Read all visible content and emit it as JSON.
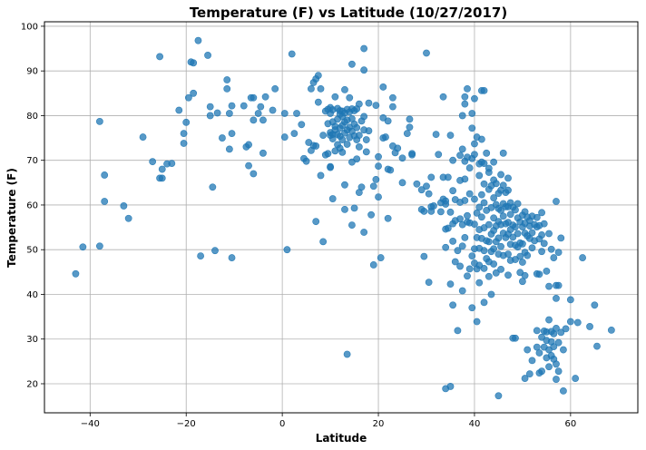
{
  "chart_data": {
    "type": "scatter",
    "title": "Temperature (F) vs Latitude (10/27/2017)",
    "xlabel": "Latitude",
    "ylabel": "Temperature (F)",
    "xlim": [
      -49.5,
      74
    ],
    "ylim": [
      13.5,
      101
    ],
    "xticks": [
      "−40",
      "−20",
      "0",
      "20",
      "40",
      "60"
    ],
    "yticks": [
      "20",
      "30",
      "40",
      "50",
      "60",
      "70",
      "80",
      "90",
      "100"
    ],
    "grid": true,
    "marker_color": "#1f77b4",
    "points": [
      [
        -43,
        44.6
      ],
      [
        -41.5,
        50.6
      ],
      [
        -38,
        78.7
      ],
      [
        -38,
        50.8
      ],
      [
        -37,
        66.7
      ],
      [
        -37,
        60.8
      ],
      [
        -33,
        59.8
      ],
      [
        -32,
        57
      ],
      [
        -29,
        75.2
      ],
      [
        -27,
        69.7
      ],
      [
        -25.5,
        93.2
      ],
      [
        -25.5,
        66
      ],
      [
        -25,
        66
      ],
      [
        -25,
        68
      ],
      [
        -24,
        69.2
      ],
      [
        -23,
        69.3
      ],
      [
        -21.5,
        81.2
      ],
      [
        -20.5,
        73.8
      ],
      [
        -20.5,
        76
      ],
      [
        -20,
        78.5
      ],
      [
        -19.5,
        84
      ],
      [
        -19,
        92
      ],
      [
        -18.5,
        91.8
      ],
      [
        -18.5,
        85
      ],
      [
        -17.5,
        96.8
      ],
      [
        -17,
        48.6
      ],
      [
        -15.5,
        93.5
      ],
      [
        -15,
        82
      ],
      [
        -15,
        80
      ],
      [
        -14.5,
        64
      ],
      [
        -14,
        49.8
      ],
      [
        -13.5,
        80.6
      ],
      [
        -12.5,
        75
      ],
      [
        -11.5,
        88
      ],
      [
        -11.5,
        86
      ],
      [
        -11,
        80.5
      ],
      [
        -11,
        72.5
      ],
      [
        -10.5,
        82.2
      ],
      [
        -10.5,
        76
      ],
      [
        -10.5,
        48.2
      ],
      [
        -8,
        82.2
      ],
      [
        -7.5,
        73
      ],
      [
        -7,
        73.5
      ],
      [
        -7,
        68.8
      ],
      [
        -6.5,
        84
      ],
      [
        -6,
        84
      ],
      [
        -6,
        79
      ],
      [
        -6,
        67
      ],
      [
        -5,
        80.5
      ],
      [
        -4.5,
        82
      ],
      [
        -4,
        79
      ],
      [
        -4,
        71.6
      ],
      [
        -3.5,
        84.2
      ],
      [
        -2,
        81.2
      ],
      [
        -1.5,
        86
      ],
      [
        0.5,
        80.5
      ],
      [
        0.5,
        75.2
      ],
      [
        1,
        50
      ],
      [
        2,
        93.8
      ],
      [
        2.5,
        76
      ],
      [
        3,
        80.5
      ],
      [
        4,
        78
      ],
      [
        4.5,
        70.4
      ],
      [
        5,
        69.8
      ],
      [
        5.5,
        74
      ],
      [
        6,
        86
      ],
      [
        6,
        72.2
      ],
      [
        6.5,
        87.4
      ],
      [
        6.5,
        73.3
      ],
      [
        7,
        88.2
      ],
      [
        7,
        73.2
      ],
      [
        7,
        56.3
      ],
      [
        7.5,
        89
      ],
      [
        7.5,
        83
      ],
      [
        8,
        86
      ],
      [
        8,
        66.6
      ],
      [
        8.5,
        75.6
      ],
      [
        8.5,
        51.8
      ],
      [
        9,
        81
      ],
      [
        9,
        71.2
      ],
      [
        9.5,
        81.4
      ],
      [
        9.5,
        78.2
      ],
      [
        9.5,
        71.5
      ],
      [
        10,
        81.8
      ],
      [
        10,
        80.5
      ],
      [
        10,
        76.2
      ],
      [
        10,
        75.6
      ],
      [
        10,
        68.6
      ],
      [
        10,
        68.4
      ],
      [
        10.5,
        81.3
      ],
      [
        10.5,
        78.6
      ],
      [
        10.5,
        75.8
      ],
      [
        10.5,
        74.8
      ],
      [
        10.5,
        61.4
      ],
      [
        11,
        84.2
      ],
      [
        11,
        77.6
      ],
      [
        11,
        76.8
      ],
      [
        11,
        72.1
      ],
      [
        11.5,
        81.6
      ],
      [
        11.5,
        79.2
      ],
      [
        11.5,
        75.8
      ],
      [
        11.5,
        73.5
      ],
      [
        12,
        81.1
      ],
      [
        12,
        80.3
      ],
      [
        12,
        77.2
      ],
      [
        12,
        75.4
      ],
      [
        12,
        72.7
      ],
      [
        12.5,
        81
      ],
      [
        12.5,
        79.8
      ],
      [
        12.5,
        77.8
      ],
      [
        12.5,
        74.6
      ],
      [
        12.5,
        71.8
      ],
      [
        13,
        85.8
      ],
      [
        13,
        80.6
      ],
      [
        13,
        78.6
      ],
      [
        13,
        76.1
      ],
      [
        13,
        64.5
      ],
      [
        13,
        59
      ],
      [
        13.5,
        81.4
      ],
      [
        13.5,
        79
      ],
      [
        13.5,
        76.8
      ],
      [
        13.5,
        73.6
      ],
      [
        13.5,
        26.6
      ],
      [
        14,
        84
      ],
      [
        14,
        80.8
      ],
      [
        14,
        77.4
      ],
      [
        14,
        75.1
      ],
      [
        14.5,
        81.5
      ],
      [
        14.5,
        79.3
      ],
      [
        14.5,
        76.5
      ],
      [
        14.5,
        91.5
      ],
      [
        14.5,
        69.6
      ],
      [
        14.5,
        55.5
      ],
      [
        15,
        81.1
      ],
      [
        15,
        78.1
      ],
      [
        15,
        75.5
      ],
      [
        15,
        59.3
      ],
      [
        15.5,
        81.5
      ],
      [
        15.5,
        77.3
      ],
      [
        15.5,
        74.6
      ],
      [
        15.5,
        70.3
      ],
      [
        16,
        82.6
      ],
      [
        16,
        75.6
      ],
      [
        16,
        73
      ],
      [
        16,
        62.8
      ],
      [
        16.5,
        78.8
      ],
      [
        16.5,
        64
      ],
      [
        17,
        95
      ],
      [
        17,
        90.2
      ],
      [
        17,
        79.8
      ],
      [
        17,
        76.8
      ],
      [
        17,
        53.9
      ],
      [
        17.5,
        74.6
      ],
      [
        17.5,
        71.9
      ],
      [
        18,
        82.8
      ],
      [
        18,
        76.6
      ],
      [
        18.5,
        57.8
      ],
      [
        19,
        64.2
      ],
      [
        19,
        46.6
      ],
      [
        19.5,
        82.3
      ],
      [
        19.5,
        65.7
      ],
      [
        20,
        70.8
      ],
      [
        20,
        68.7
      ],
      [
        20,
        61.8
      ],
      [
        20.5,
        48.2
      ],
      [
        21,
        86.4
      ],
      [
        21,
        79.5
      ],
      [
        21,
        75
      ],
      [
        21.5,
        75.2
      ],
      [
        22,
        78.8
      ],
      [
        22,
        68
      ],
      [
        22,
        57
      ],
      [
        22.5,
        67.8
      ],
      [
        23,
        84
      ],
      [
        23,
        82
      ],
      [
        23,
        73.2
      ],
      [
        23.5,
        71.7
      ],
      [
        24,
        72.7
      ],
      [
        25,
        70.5
      ],
      [
        25,
        65
      ],
      [
        26,
        76
      ],
      [
        26.5,
        79.2
      ],
      [
        26.5,
        77.4
      ],
      [
        27,
        71.5
      ],
      [
        27,
        71.2
      ],
      [
        28,
        64.7
      ],
      [
        29,
        63.4
      ],
      [
        29,
        59
      ],
      [
        29.5,
        58.6
      ],
      [
        29.5,
        48.5
      ],
      [
        30,
        94
      ],
      [
        30,
        64.2
      ],
      [
        30.5,
        62.5
      ],
      [
        30.5,
        42.7
      ],
      [
        31,
        66.2
      ],
      [
        31,
        58.6
      ],
      [
        31,
        59.6
      ],
      [
        31.5,
        59.8
      ],
      [
        32,
        75.8
      ],
      [
        32.5,
        71.3
      ],
      [
        33,
        60.5
      ],
      [
        33,
        58.5
      ],
      [
        33.5,
        84.2
      ],
      [
        33.5,
        66.2
      ],
      [
        33.5,
        61.3
      ],
      [
        34,
        60.9
      ],
      [
        34,
        60.2
      ],
      [
        34,
        54.6
      ],
      [
        34,
        50.5
      ],
      [
        34,
        18.9
      ],
      [
        34.5,
        66.2
      ],
      [
        34.5,
        54.8
      ],
      [
        35,
        75.6
      ],
      [
        35,
        58.4
      ],
      [
        35,
        42.3
      ],
      [
        35,
        19.4
      ],
      [
        35.5,
        70
      ],
      [
        35.5,
        63.2
      ],
      [
        35.5,
        55.8
      ],
      [
        35.5,
        51.9
      ],
      [
        35.5,
        37.6
      ],
      [
        36,
        61.2
      ],
      [
        36,
        56.5
      ],
      [
        36,
        47.3
      ],
      [
        36.5,
        49.8
      ],
      [
        36.5,
        31.9
      ],
      [
        37,
        71.1
      ],
      [
        37,
        65.5
      ],
      [
        37,
        60.6
      ],
      [
        37,
        56.9
      ],
      [
        37,
        46.3
      ],
      [
        37.5,
        80
      ],
      [
        37.5,
        72.5
      ],
      [
        37.5,
        55.6
      ],
      [
        37.5,
        50.8
      ],
      [
        37.5,
        40.8
      ],
      [
        38,
        84.2
      ],
      [
        38,
        82.6
      ],
      [
        38,
        69.8
      ],
      [
        38,
        65.8
      ],
      [
        38,
        61
      ],
      [
        38,
        52.7
      ],
      [
        38.5,
        86
      ],
      [
        38.5,
        70.7
      ],
      [
        38.5,
        57.6
      ],
      [
        38.5,
        56.2
      ],
      [
        38.5,
        44.1
      ],
      [
        39,
        68.3
      ],
      [
        39,
        62.5
      ],
      [
        39,
        56
      ],
      [
        39,
        45.7
      ],
      [
        39.5,
        80.5
      ],
      [
        39.5,
        77.2
      ],
      [
        39.5,
        70.4
      ],
      [
        39.5,
        48.6
      ],
      [
        39.5,
        37
      ],
      [
        40,
        83.8
      ],
      [
        40,
        73.7
      ],
      [
        40,
        71.3
      ],
      [
        40,
        61.3
      ],
      [
        40,
        55.7
      ],
      [
        40,
        50.2
      ],
      [
        40,
        47
      ],
      [
        40.5,
        75.2
      ],
      [
        40.5,
        58.2
      ],
      [
        40.5,
        52.7
      ],
      [
        40.5,
        45.7
      ],
      [
        40.5,
        33.9
      ],
      [
        41,
        69.2
      ],
      [
        41,
        66.6
      ],
      [
        41,
        59.5
      ],
      [
        41,
        54.5
      ],
      [
        41,
        50.3
      ],
      [
        41,
        46.5
      ],
      [
        41,
        42.6
      ],
      [
        41.5,
        85.6
      ],
      [
        41.5,
        74.7
      ],
      [
        41.5,
        69.6
      ],
      [
        41.5,
        62.3
      ],
      [
        41.5,
        57.3
      ],
      [
        41.5,
        52.5
      ],
      [
        42,
        85.6
      ],
      [
        42,
        69.3
      ],
      [
        42,
        64.7
      ],
      [
        42,
        60.5
      ],
      [
        42,
        54.9
      ],
      [
        42,
        49.8
      ],
      [
        42,
        45.8
      ],
      [
        42,
        38.2
      ],
      [
        42.5,
        71.6
      ],
      [
        42.5,
        58.8
      ],
      [
        42.5,
        52
      ],
      [
        42.5,
        48
      ],
      [
        43,
        68.2
      ],
      [
        43,
        67.3
      ],
      [
        43,
        63.5
      ],
      [
        43,
        55.6
      ],
      [
        43,
        51.8
      ],
      [
        43,
        47.3
      ],
      [
        43,
        44
      ],
      [
        43.5,
        64.3
      ],
      [
        43.5,
        59.4
      ],
      [
        43.5,
        53.5
      ],
      [
        43.5,
        49.6
      ],
      [
        43.5,
        40
      ],
      [
        44,
        69.6
      ],
      [
        44,
        65.6
      ],
      [
        44,
        61.6
      ],
      [
        44,
        57.1
      ],
      [
        44,
        54.3
      ],
      [
        44,
        50.2
      ],
      [
        44,
        46.8
      ],
      [
        44.5,
        64.8
      ],
      [
        44.5,
        60.1
      ],
      [
        44.5,
        55.3
      ],
      [
        44.5,
        51.8
      ],
      [
        44.5,
        44.8
      ],
      [
        45,
        62.6
      ],
      [
        45,
        59.2
      ],
      [
        45,
        56.3
      ],
      [
        45,
        52.6
      ],
      [
        45,
        49
      ],
      [
        45,
        17.3
      ],
      [
        45.5,
        66.8
      ],
      [
        45.5,
        63.3
      ],
      [
        45.5,
        58.8
      ],
      [
        45.5,
        55.6
      ],
      [
        45.5,
        50.7
      ],
      [
        45.5,
        45.6
      ],
      [
        46,
        71.6
      ],
      [
        46,
        64.4
      ],
      [
        46,
        60.3
      ],
      [
        46,
        57.5
      ],
      [
        46,
        53.7
      ],
      [
        46,
        48.7
      ],
      [
        46.5,
        62.8
      ],
      [
        46.5,
        59.6
      ],
      [
        46.5,
        55.8
      ],
      [
        46.5,
        52.7
      ],
      [
        47,
        66
      ],
      [
        47,
        63.3
      ],
      [
        47,
        59.6
      ],
      [
        47,
        56.1
      ],
      [
        47,
        53.5
      ],
      [
        47,
        49
      ],
      [
        47,
        44.3
      ],
      [
        47.5,
        60.5
      ],
      [
        47.5,
        57.9
      ],
      [
        47.5,
        54.5
      ],
      [
        47.5,
        51.2
      ],
      [
        47.5,
        47.6
      ],
      [
        48,
        59.5
      ],
      [
        48,
        55.5
      ],
      [
        48,
        52.8
      ],
      [
        48,
        30.2
      ],
      [
        48.5,
        58.9
      ],
      [
        48.5,
        55.1
      ],
      [
        48.5,
        51
      ],
      [
        48.5,
        47.8
      ],
      [
        48.5,
        30.2
      ],
      [
        49,
        60.3
      ],
      [
        49,
        57.1
      ],
      [
        49,
        53.6
      ],
      [
        49,
        50.6
      ],
      [
        49.5,
        56.2
      ],
      [
        49.5,
        51.5
      ],
      [
        49.5,
        48.5
      ],
      [
        49.5,
        44.9
      ],
      [
        50,
        57.7
      ],
      [
        50,
        55.1
      ],
      [
        50,
        51.3
      ],
      [
        50,
        47.2
      ],
      [
        50,
        42.9
      ],
      [
        50.5,
        58.5
      ],
      [
        50.5,
        55.9
      ],
      [
        50.5,
        53.7
      ],
      [
        50.5,
        49.4
      ],
      [
        50.5,
        44.2
      ],
      [
        50.5,
        21.2
      ],
      [
        51,
        57.3
      ],
      [
        51,
        53.1
      ],
      [
        51,
        48.7
      ],
      [
        51,
        27.6
      ],
      [
        51.5,
        56.5
      ],
      [
        51.5,
        55.3
      ],
      [
        51.5,
        52.5
      ],
      [
        51.5,
        22.2
      ],
      [
        52,
        57.5
      ],
      [
        52,
        53.8
      ],
      [
        52,
        50.4
      ],
      [
        52,
        25.2
      ],
      [
        52.5,
        55.6
      ],
      [
        52.5,
        52
      ],
      [
        53,
        57.2
      ],
      [
        53,
        55.1
      ],
      [
        53,
        44.6
      ],
      [
        53,
        31.9
      ],
      [
        53,
        28.2
      ],
      [
        53.5,
        55.4
      ],
      [
        53.5,
        52.4
      ],
      [
        53.5,
        44.5
      ],
      [
        53.5,
        26.9
      ],
      [
        53.5,
        22.4
      ],
      [
        54,
        58.3
      ],
      [
        54,
        53.3
      ],
      [
        54,
        49.6
      ],
      [
        54,
        30.4
      ],
      [
        54,
        22.8
      ],
      [
        54.5,
        55.8
      ],
      [
        54.5,
        51.4
      ],
      [
        54.5,
        31.8
      ],
      [
        54.5,
        28.2
      ],
      [
        55,
        45.2
      ],
      [
        55,
        31.6
      ],
      [
        55,
        29.7
      ],
      [
        55,
        25.8
      ],
      [
        55.5,
        53.6
      ],
      [
        55.5,
        41.8
      ],
      [
        55.5,
        34.3
      ],
      [
        55.5,
        27.6
      ],
      [
        55.5,
        23.8
      ],
      [
        56,
        50.1
      ],
      [
        56,
        31.7
      ],
      [
        56,
        29.4
      ],
      [
        56,
        26.3
      ],
      [
        56.5,
        48.2
      ],
      [
        56.5,
        31.2
      ],
      [
        56.5,
        28.3
      ],
      [
        56.5,
        25.5
      ],
      [
        57,
        60.8
      ],
      [
        57,
        42
      ],
      [
        57,
        39.1
      ],
      [
        57,
        32.4
      ],
      [
        57,
        24.4
      ],
      [
        57,
        21
      ],
      [
        57.5,
        49.4
      ],
      [
        57.5,
        42
      ],
      [
        57.5,
        29.2
      ],
      [
        57.5,
        22.8
      ],
      [
        58,
        52.6
      ],
      [
        58,
        31.5
      ],
      [
        58.5,
        27.6
      ],
      [
        58.5,
        18.4
      ],
      [
        59,
        32.3
      ],
      [
        60,
        38.8
      ],
      [
        60,
        33.9
      ],
      [
        61,
        21.2
      ],
      [
        61.5,
        33.7
      ],
      [
        62.5,
        48.2
      ],
      [
        64,
        32.8
      ],
      [
        65,
        37.6
      ],
      [
        65.5,
        28.4
      ],
      [
        68.5,
        32
      ]
    ]
  }
}
